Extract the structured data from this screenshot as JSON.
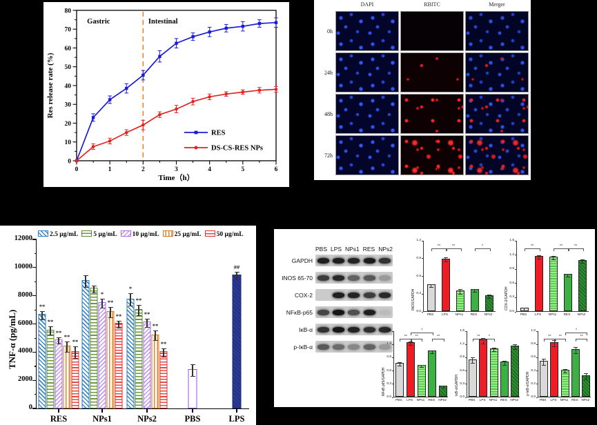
{
  "chart_data": [
    {
      "id": "release-curve",
      "type": "line",
      "xlabel": "Time（h）",
      "ylabel": "Res release rate (%)",
      "xlim": [
        0,
        6
      ],
      "ylim": [
        0,
        80
      ],
      "xticks": [
        0,
        1,
        2,
        3,
        4,
        5,
        6
      ],
      "yticks": [
        0,
        10,
        20,
        30,
        40,
        50,
        60,
        70,
        80
      ],
      "region_labels": [
        "Gastric",
        "Intestinal"
      ],
      "divider_x": 2,
      "divider_color": "#e8832a",
      "x": [
        0,
        0.5,
        1,
        1.5,
        2,
        2.5,
        3,
        3.5,
        4,
        4.5,
        5,
        5.5,
        6
      ],
      "series": [
        {
          "name": "RES",
          "color": "#1a1ad8",
          "marker": "square",
          "values": [
            0,
            23,
            32.5,
            38.5,
            45.5,
            55.5,
            62.5,
            66,
            68.5,
            70.5,
            71.5,
            73,
            73.5
          ],
          "err": [
            0,
            2,
            2,
            2.5,
            2.5,
            3,
            2.5,
            2,
            2.5,
            2,
            2.5,
            2,
            2.5
          ]
        },
        {
          "name": "DS-CS-RES NPs",
          "color": "#e32222",
          "marker": "circle",
          "values": [
            0,
            7.5,
            10.5,
            15,
            19,
            24.5,
            27.5,
            31.5,
            34,
            35.5,
            36.5,
            37.5,
            38
          ],
          "err": [
            0,
            1.5,
            1.5,
            1.5,
            2.5,
            1.5,
            2,
            1.8,
            1.5,
            1.2,
            1.2,
            1.5,
            1.5
          ]
        }
      ]
    },
    {
      "id": "tnf-bars",
      "type": "bar",
      "ylabel": "TNF-α (pg/mL)",
      "ylim": [
        0,
        12000
      ],
      "yticks": [
        0,
        2000,
        4000,
        6000,
        8000,
        10000,
        12000
      ],
      "legend": [
        "2.5 µg/mL",
        "5 µg/mL",
        "10 µg/mL",
        "25 µg/mL",
        "50 µg/mL"
      ],
      "groups": [
        {
          "label": "RES",
          "values": [
            6700,
            5600,
            4900,
            4450,
            4050
          ],
          "err": [
            280,
            260,
            180,
            350,
            400
          ],
          "sig": [
            "**",
            "**",
            "**",
            "**",
            "**"
          ]
        },
        {
          "label": "NPs1",
          "values": [
            9100,
            8550,
            7550,
            6900,
            6050
          ],
          "err": [
            380,
            220,
            280,
            350,
            220
          ],
          "sig": [
            "",
            "",
            "*",
            "**",
            "**"
          ]
        },
        {
          "label": "NPs2",
          "values": [
            7800,
            7050,
            6150,
            5250,
            4050
          ],
          "err": [
            420,
            350,
            260,
            320,
            260
          ],
          "sig": [
            "*",
            "**",
            "**",
            "**",
            "**"
          ]
        },
        {
          "label": "PBS",
          "values": [
            2800
          ],
          "err": [
            380
          ],
          "sig": [
            ""
          ]
        },
        {
          "label": "LPS",
          "values": [
            9500
          ],
          "err": [
            260
          ],
          "sig": [
            "##"
          ]
        }
      ]
    },
    {
      "id": "inos-gapdh",
      "type": "bar",
      "ylabel": "INOS/GAPDH",
      "ylim": [
        0,
        1.2
      ],
      "yticks": [
        0.0,
        0.3,
        0.6,
        0.9,
        1.2
      ],
      "categories": [
        "PBS",
        "LPS",
        "NPs1",
        "RES",
        "NPs2"
      ],
      "values": [
        0.45,
        0.89,
        0.35,
        0.37,
        0.27
      ],
      "err": [
        0.02,
        0.03,
        0.03,
        0.02,
        0.02
      ],
      "sig": [
        {
          "a": 0,
          "b": 1,
          "label": "**"
        },
        {
          "a": 1,
          "b": 2,
          "label": "**"
        },
        {
          "a": 3,
          "b": 4,
          "label": "*"
        }
      ]
    },
    {
      "id": "cox2-gapdh",
      "type": "bar",
      "ylabel": "COX-2/GAPDH",
      "ylim": [
        0,
        1.5
      ],
      "yticks": [
        0.0,
        0.3,
        0.6,
        0.9,
        1.2,
        1.5
      ],
      "categories": [
        "PBS",
        "LPS",
        "NPs1",
        "RES",
        "NPs2"
      ],
      "values": [
        0.07,
        1.17,
        1.15,
        0.78,
        1.08
      ],
      "err": [
        0.02,
        0.03,
        0.03,
        0.02,
        0.03
      ],
      "sig": [
        {
          "a": 0,
          "b": 1,
          "label": "**"
        },
        {
          "a": 2,
          "b": 3,
          "label": "**"
        },
        {
          "a": 3,
          "b": 4,
          "label": "**"
        }
      ]
    },
    {
      "id": "nfkb-p65-gapdh",
      "type": "bar",
      "ylabel": "NFκB p65/GAPDH",
      "ylim": [
        0,
        1.5
      ],
      "yticks": [
        0.0,
        0.3,
        0.6,
        0.9,
        1.2,
        1.5
      ],
      "categories": [
        "PBS",
        "LPS",
        "NPs1",
        "RES",
        "NPs2"
      ],
      "values": [
        0.77,
        1.24,
        0.72,
        1.04,
        0.25
      ],
      "err": [
        0.03,
        0.03,
        0.02,
        0.03,
        0.02
      ],
      "sig": [
        {
          "a": 0,
          "b": 1,
          "label": "**"
        },
        {
          "a": 1,
          "b": 2,
          "label": "**"
        },
        {
          "a": 3,
          "b": 4,
          "label": "**"
        },
        {
          "a": 1,
          "b": 3,
          "label": "*"
        }
      ]
    },
    {
      "id": "ikb-a-gapdh",
      "type": "bar",
      "ylabel": "IκB-α/GAPDH",
      "ylim": [
        0,
        1.5
      ],
      "yticks": [
        0.0,
        0.3,
        0.6,
        0.9,
        1.2,
        1.5
      ],
      "categories": [
        "PBS",
        "LPS",
        "NPs1",
        "RES",
        "NPs2"
      ],
      "values": [
        0.85,
        1.29,
        1.09,
        0.79,
        1.16
      ],
      "err": [
        0.05,
        0.05,
        0.03,
        0.04,
        0.05
      ],
      "sig": [
        {
          "a": 0,
          "b": 1,
          "label": "**"
        },
        {
          "a": 1,
          "b": 2,
          "label": "*"
        }
      ]
    },
    {
      "id": "p-ikb-a-gapdh",
      "type": "bar",
      "ylabel": "p-IκB-α/GAPDH",
      "ylim": [
        0,
        1.0
      ],
      "yticks": [
        0.0,
        0.2,
        0.4,
        0.6,
        0.8,
        1.0
      ],
      "categories": [
        "PBS",
        "LPS",
        "NPs1",
        "RES",
        "NPs2"
      ],
      "values": [
        0.54,
        0.82,
        0.41,
        0.72,
        0.32
      ],
      "err": [
        0.04,
        0.04,
        0.02,
        0.04,
        0.04
      ],
      "sig": [
        {
          "a": 0,
          "b": 1,
          "label": "**"
        },
        {
          "a": 1,
          "b": 2,
          "label": "**"
        },
        {
          "a": 3,
          "b": 4,
          "label": "**"
        },
        {
          "a": 2,
          "b": 4,
          "label": "*"
        }
      ]
    }
  ],
  "microscopy": {
    "columns": [
      "DAPI",
      "RBITC",
      "Merger"
    ],
    "row_labels": [
      "0h",
      "24h",
      "48h",
      "72h"
    ],
    "red_density": [
      0,
      1,
      2,
      3
    ]
  },
  "western_blot": {
    "lane_labels": [
      "PBS",
      "LPS",
      "NPs1",
      "RES",
      "NPs2"
    ],
    "rows": [
      {
        "label": "GAPDH",
        "bands": [
          0.9,
          0.9,
          0.88,
          0.92,
          0.8
        ]
      },
      {
        "label": "INOS 65-70",
        "bands": [
          0.75,
          0.85,
          0.55,
          0.6,
          0.25
        ]
      },
      {
        "label": "COX-2",
        "bands": [
          0.0,
          0.9,
          0.88,
          0.75,
          0.85
        ]
      },
      {
        "label": "NFκB-p65",
        "bands": [
          0.7,
          0.95,
          0.65,
          0.9,
          0.08
        ]
      },
      {
        "label": "IκB-α",
        "bands": [
          0.8,
          0.95,
          0.88,
          0.82,
          0.85
        ]
      },
      {
        "label": "p-IκB-α",
        "bands": [
          0.6,
          0.5,
          0.35,
          0.55,
          0.25
        ]
      }
    ]
  },
  "colors": {
    "tnf_swatches": [
      "#2f7ab8",
      "#5a8a30",
      "#a86ae0",
      "#d2781e",
      "#e03030"
    ],
    "pbs_bar_border": "#9b4fd8",
    "lps_bar": "#2c3c9c",
    "mini_bars": [
      "#d9d9d9",
      "#ee1c25",
      "#7be06a",
      "#3cb043",
      "#237a23"
    ]
  }
}
